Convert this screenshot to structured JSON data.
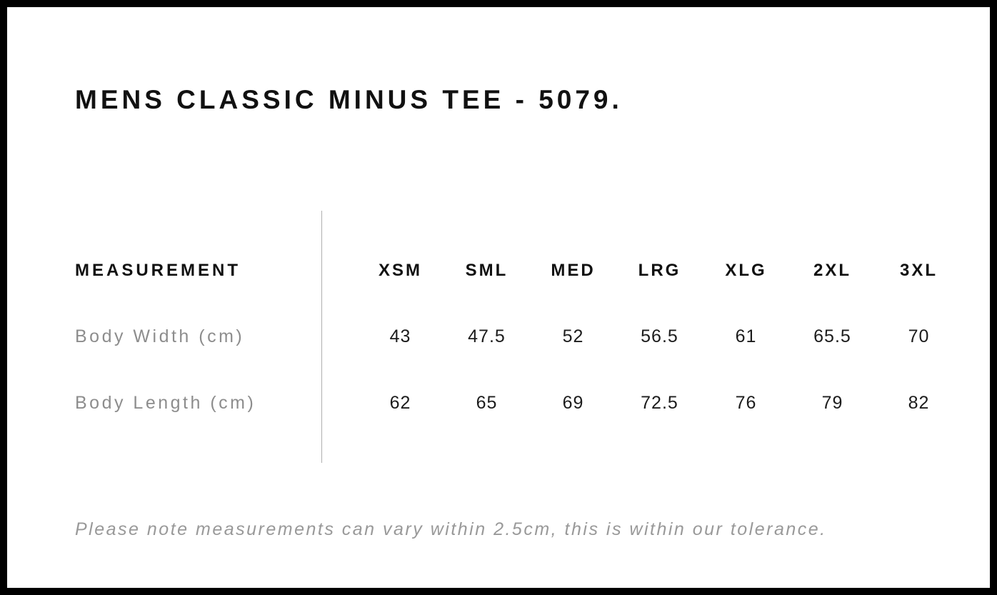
{
  "page": {
    "title": "MENS CLASSIC MINUS TEE - 5079.",
    "note": "Please note measurements can vary within 2.5cm, this is within our tolerance."
  },
  "size_chart": {
    "measurement_header": "MEASUREMENT",
    "size_headers": [
      "XSM",
      "SML",
      "MED",
      "LRG",
      "XLG",
      "2XL",
      "3XL"
    ],
    "rows": [
      {
        "label": "Body Width (cm)",
        "values": [
          "43",
          "47.5",
          "52",
          "56.5",
          "61",
          "65.5",
          "70"
        ]
      },
      {
        "label": "Body Length (cm)",
        "values": [
          "62",
          "65",
          "69",
          "72.5",
          "76",
          "79",
          "82"
        ]
      }
    ]
  },
  "chart_data": {
    "type": "table",
    "title": "MENS CLASSIC MINUS TEE - 5079.",
    "columns": [
      "MEASUREMENT",
      "XSM",
      "SML",
      "MED",
      "LRG",
      "XLG",
      "2XL",
      "3XL"
    ],
    "rows": [
      [
        "Body Width (cm)",
        43,
        47.5,
        52,
        56.5,
        61,
        65.5,
        70
      ],
      [
        "Body Length (cm)",
        62,
        65,
        69,
        72.5,
        76,
        79,
        82
      ]
    ],
    "footnote": "Please note measurements can vary within 2.5cm, this is within our tolerance."
  },
  "colors": {
    "background": "#ffffff",
    "page_border": "#000000",
    "heading_text": "#111111",
    "value_text": "#1c1c1c",
    "label_text": "#8d8d8d",
    "note_text": "#999999",
    "divider": "#b0b0b0"
  }
}
